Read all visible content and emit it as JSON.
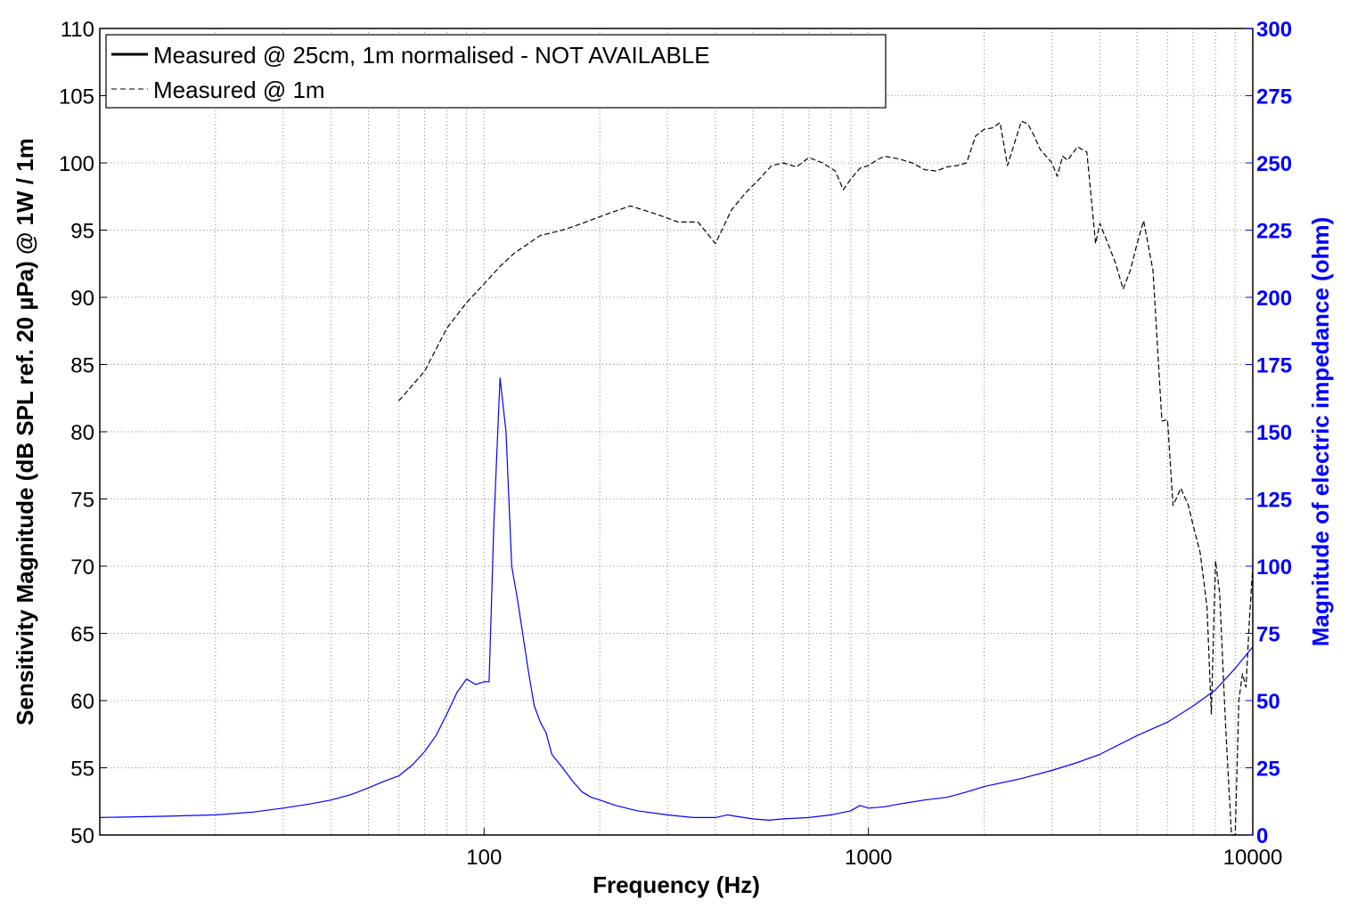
{
  "chart_data": {
    "type": "line",
    "title": "",
    "xlabel": "Frequency (Hz)",
    "ylabel_left": "Sensitivity Magnitude (dB SPL ref. 20 µPa) @ 1W / 1m",
    "ylabel_right": "Magnitude of electric impedance (ohm)",
    "x_scale": "log",
    "xlim": [
      10,
      10000
    ],
    "ylim_left": [
      50,
      110
    ],
    "ylim_right": [
      0,
      300
    ],
    "x_ticks": [
      100,
      1000,
      10000
    ],
    "x_tick_labels": [
      "100",
      "1000",
      "10000"
    ],
    "y_left_ticks": [
      50,
      55,
      60,
      65,
      70,
      75,
      80,
      85,
      90,
      95,
      100,
      105,
      110
    ],
    "y_right_ticks": [
      0,
      25,
      50,
      75,
      100,
      125,
      150,
      175,
      200,
      225,
      250,
      275,
      300
    ],
    "grid": true,
    "legend_position": "top-left",
    "colors": {
      "spl": "#000000",
      "impedance": "#0000ff",
      "right_axis": "#0000ff"
    },
    "legend": [
      {
        "label": "Measured @ 25cm, 1m normalised - NOT AVAILABLE",
        "style": "solid"
      },
      {
        "label": "Measured @ 1m",
        "style": "dashed"
      }
    ],
    "series": [
      {
        "name": "Measured @ 1m",
        "axis": "left",
        "x": [
          60,
          70,
          80,
          90,
          100,
          110,
          120,
          140,
          160,
          180,
          200,
          240,
          280,
          320,
          360,
          400,
          440,
          480,
          520,
          560,
          600,
          650,
          700,
          760,
          820,
          860,
          900,
          950,
          1000,
          1050,
          1100,
          1200,
          1300,
          1400,
          1500,
          1600,
          1700,
          1800,
          1900,
          2000,
          2100,
          2200,
          2300,
          2400,
          2500,
          2600,
          2700,
          2800,
          2900,
          3000,
          3100,
          3200,
          3300,
          3500,
          3700,
          3900,
          4000,
          4200,
          4400,
          4600,
          4800,
          5000,
          5200,
          5500,
          5800,
          6000,
          6200,
          6500,
          6800,
          7000,
          7300,
          7600,
          7800,
          8000,
          8200,
          8500,
          8800,
          9000,
          9200,
          9400,
          9600,
          9800,
          10000
        ],
        "values": [
          82.3,
          84.5,
          87.7,
          89.6,
          91.0,
          92.3,
          93.3,
          94.6,
          95.0,
          95.5,
          96.0,
          96.8,
          96.2,
          95.6,
          95.6,
          94.0,
          96.5,
          97.8,
          98.8,
          99.8,
          100.0,
          99.7,
          100.4,
          100.0,
          99.4,
          98.0,
          98.8,
          99.6,
          99.8,
          100.2,
          100.5,
          100.3,
          100.0,
          99.5,
          99.4,
          99.7,
          99.8,
          100.0,
          102.0,
          102.5,
          102.6,
          103.0,
          99.8,
          101.5,
          103.1,
          102.9,
          102.0,
          101.0,
          100.5,
          100.0,
          99.0,
          100.5,
          100.2,
          101.2,
          100.8,
          94.0,
          95.5,
          94.0,
          92.5,
          90.6,
          92.0,
          94.0,
          95.7,
          92.0,
          80.8,
          80.9,
          74.5,
          75.8,
          74.5,
          73.0,
          71.0,
          67.0,
          59.0,
          70.4,
          68.0,
          58.0,
          50.0,
          48.0,
          60.0,
          62.0,
          61.0,
          66.0,
          70.0
        ]
      },
      {
        "name": "Magnitude of electric impedance (ohm)",
        "axis": "right",
        "x": [
          10,
          15,
          20,
          25,
          30,
          35,
          40,
          45,
          50,
          55,
          60,
          65,
          70,
          75,
          80,
          85,
          90,
          95,
          100,
          103,
          106,
          110,
          114,
          118,
          122,
          126,
          130,
          135,
          140,
          145,
          150,
          160,
          170,
          180,
          190,
          200,
          220,
          250,
          300,
          350,
          400,
          430,
          450,
          500,
          550,
          600,
          700,
          800,
          900,
          950,
          1000,
          1100,
          1200,
          1400,
          1600,
          1800,
          2000,
          2500,
          3000,
          3500,
          4000,
          5000,
          6000,
          7000,
          8000,
          9000,
          10000
        ],
        "values": [
          6.5,
          7.0,
          7.5,
          8.5,
          10.0,
          11.5,
          13.0,
          15.0,
          17.5,
          20.0,
          22.0,
          26.0,
          31.0,
          37.0,
          45.0,
          53.0,
          58.0,
          56.0,
          57.0,
          57.0,
          115.0,
          170.0,
          150.0,
          100.0,
          88.0,
          75.0,
          62.0,
          48.0,
          42.0,
          38.0,
          30.0,
          25.0,
          20.0,
          16.0,
          14.0,
          13.0,
          11.0,
          9.0,
          7.5,
          6.5,
          6.5,
          7.5,
          7.0,
          6.0,
          5.5,
          6.0,
          6.5,
          7.5,
          9.0,
          11.0,
          10.0,
          10.5,
          11.5,
          13.0,
          14.0,
          16.0,
          18.0,
          21.0,
          24.0,
          27.0,
          30.0,
          37.0,
          42.0,
          48.0,
          54.0,
          62.0,
          70.0
        ]
      }
    ]
  }
}
